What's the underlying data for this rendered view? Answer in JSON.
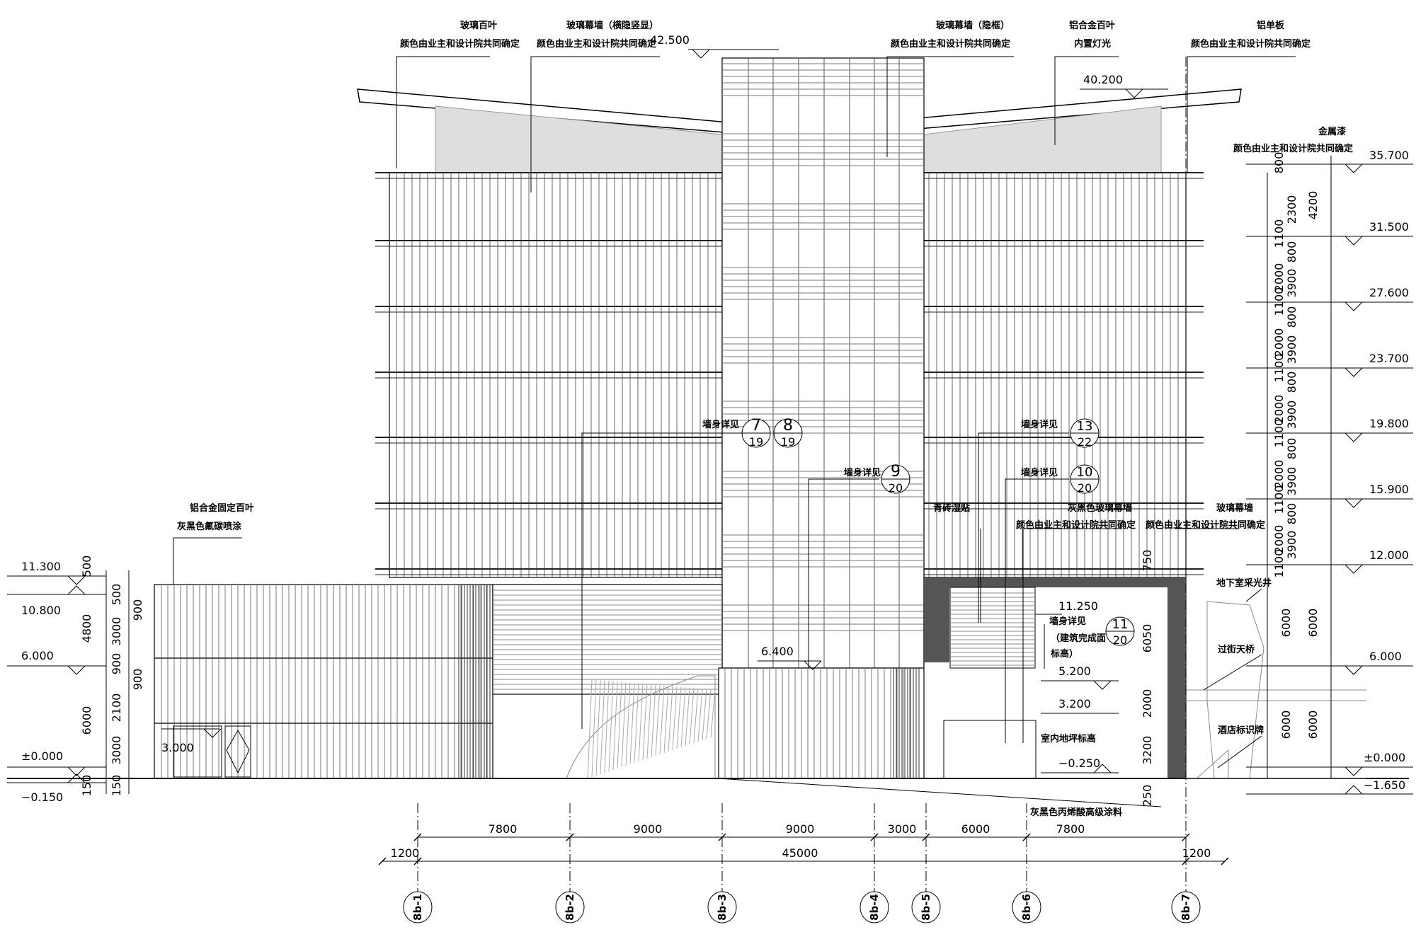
{
  "notes": {
    "glass_louver": "玻璃百叶",
    "color_owner_design_1": "颜色由业主和设计院共同确定",
    "curtain_wall_hidden_v": "玻璃幕墙（横隐竖显）",
    "color_owner_design_2": "颜色由业主和设计院共同确定",
    "curtain_wall_hidden_frame": "玻璃幕墙（隐框）",
    "color_owner_design_3": "颜色由业主和设计院共同确定",
    "alu_louver": "铝合金百叶",
    "built_in_light": "内置灯光",
    "alu_panel": "铝单板",
    "color_owner_design_4": "颜色由业主和设计院共同确定",
    "metal_cap": "金属漆",
    "color_owner_design_5": "颜色由业主和设计院共同确定",
    "alu_fixed_louver": "铝合金固定百叶",
    "grey_black_fluoro": "灰黑色氟碳喷涂",
    "wall_detail_1": "墙身详见",
    "wall_detail_2": "墙身详见",
    "wall_detail_3": "墙身详见",
    "wall_detail_4": "墙身详见",
    "wall_detail_5": "墙身详见",
    "green_brick": "青砖湿贴",
    "grey_glass_wall": "灰黑色玻璃幕墙",
    "color_owner_design_6": "颜色由业主和设计院共同确定",
    "glass_curtain_wall": "玻璃幕墙",
    "color_owner_design_7": "颜色由业主和设计院共同确定",
    "basement_light_well": "地下室采光井",
    "street_bridge": "过街天桥",
    "hotel_sign": "酒店标识牌",
    "indoor_floor_level": "室内地坪标高",
    "finished_level_1": "（建筑完成面",
    "finished_level_2": "标高）",
    "grey_acrylic": "灰黑色丙烯酸高级涂料"
  },
  "details": {
    "d7": "7",
    "d7s": "19",
    "d8": "8",
    "d8s": "19",
    "d9": "9",
    "d9s": "20",
    "d13": "13",
    "d13s": "22",
    "d10": "10",
    "d10s": "20",
    "d11": "11",
    "d11s": "20"
  },
  "elevations": {
    "e42500": "42.500",
    "e40200": "40.200",
    "e35700": "35.700",
    "e31500": "31.500",
    "e27600": "27.600",
    "e23700": "23.700",
    "e19800": "19.800",
    "e15900": "15.900",
    "e12000": "12.000",
    "e6000r": "6.000",
    "e0000r": "±0.000",
    "em1650": "−1.650",
    "e11300": "11.300",
    "e10800": "10.800",
    "e6000l": "6.000",
    "e0000l": "±0.000",
    "em0150": "−0.150",
    "e3000": "3.000",
    "e6400": "6.400",
    "e11250": "11.250",
    "e5200": "5.200",
    "e3200": "3.200",
    "em0250": "−0.250"
  },
  "dims_bottom": {
    "d7800a": "7800",
    "d9000a": "9000",
    "d9000b": "9000",
    "d3000": "3000",
    "d6000": "6000",
    "d7800b": "7800",
    "d1200l": "1200",
    "d45000": "45000",
    "d1200r": "1200"
  },
  "dims_left": {
    "l500": "500",
    "l500b": "500",
    "l900a": "900",
    "l4800": "4800",
    "l3000a": "3000",
    "l900b": "900",
    "l900c": "900",
    "l2100": "2100",
    "l6000": "6000",
    "l3000b": "3000",
    "l150a": "150",
    "l150b": "150"
  },
  "dims_right": {
    "r800a": "800",
    "r2300": "2300",
    "r1100a": "1100",
    "r4200": "4200",
    "r800b": "800",
    "r2000a": "2000",
    "r1100b": "1100",
    "r3900a": "3900",
    "r800c": "800",
    "r2000b": "2000",
    "r1100c": "1100",
    "r3900b": "3900",
    "r800d": "800",
    "r2000c": "2000",
    "r1100d": "1100",
    "r3900c": "3900",
    "r800e": "800",
    "r2000d": "2000",
    "r1100e": "1100",
    "r3900d": "3900",
    "r800f": "800",
    "r2000e": "2000",
    "r1100f": "1100",
    "r3900e": "3900",
    "r6000a": "6000",
    "r6000b": "6000",
    "r6000c": "6000",
    "r6000d": "6000",
    "r750": "750",
    "r6050": "6050",
    "r2000f": "2000",
    "r3200": "3200",
    "r250": "250"
  },
  "grid_axes": {
    "a1": "8b-1",
    "a2": "8b-2",
    "a3": "8b-3",
    "a4": "8b-4",
    "a5": "8b-5",
    "a6": "8b-6",
    "a7": "8b-7"
  }
}
